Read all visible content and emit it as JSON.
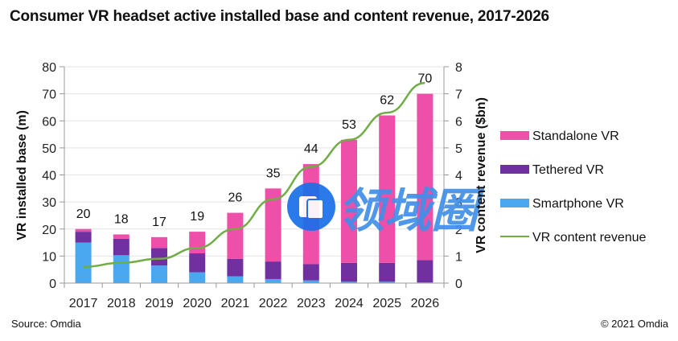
{
  "title": "Consumer VR headset active installed base and content revenue, 2017-2026",
  "footer": {
    "source": "Source: Omdia",
    "copyright": "© 2021 Omdia"
  },
  "watermark": {
    "text": "领域圈",
    "color": "#1a6fe8"
  },
  "chart_data": {
    "type": "bar",
    "stacked": true,
    "title": "Consumer VR headset active installed base and content revenue, 2017-2026",
    "categories": [
      "2017",
      "2018",
      "2019",
      "2020",
      "2021",
      "2022",
      "2023",
      "2024",
      "2025",
      "2026"
    ],
    "xlabel": "",
    "ylabel": "VR installed base (m)",
    "ylim": [
      0,
      80
    ],
    "yticks": [
      0,
      10,
      20,
      30,
      40,
      50,
      60,
      70,
      80
    ],
    "y2label": "VR content revenue ($bn)",
    "y2lim": [
      0,
      8
    ],
    "y2ticks": [
      0,
      1,
      2,
      3,
      4,
      5,
      6,
      7,
      8
    ],
    "grid": true,
    "legend_position": "right",
    "series": [
      {
        "name": "Smartphone VR",
        "type": "bar",
        "axis": "left",
        "color": "#4aa8f0",
        "values": [
          15,
          10.3,
          6.5,
          4,
          2.5,
          1.5,
          1,
          0.5,
          0.5,
          0.3
        ]
      },
      {
        "name": "Tethered VR",
        "type": "bar",
        "axis": "left",
        "color": "#7030a0",
        "values": [
          4,
          6.1,
          6.5,
          7,
          6.5,
          6.5,
          6,
          7,
          7,
          8.2
        ]
      },
      {
        "name": "Standalone VR",
        "type": "bar",
        "axis": "left",
        "color": "#ee4fa8",
        "values": [
          1,
          1.6,
          4,
          8,
          17,
          27,
          37,
          45.5,
          54.5,
          61.5
        ]
      },
      {
        "name": "VR content revenue",
        "type": "line",
        "axis": "right",
        "color": "#70ad47",
        "values": [
          0.6,
          0.75,
          0.9,
          1.3,
          2.0,
          3.1,
          4.3,
          5.3,
          6.3,
          7.4
        ]
      }
    ],
    "totals": [
      20,
      18,
      17,
      19,
      26,
      35,
      44,
      53,
      62,
      70
    ],
    "legend": [
      {
        "name": "Standalone VR",
        "color": "#ee4fa8",
        "kind": "bar"
      },
      {
        "name": "Tethered VR",
        "color": "#7030a0",
        "kind": "bar"
      },
      {
        "name": "Smartphone VR",
        "color": "#4aa8f0",
        "kind": "bar"
      },
      {
        "name": "VR content revenue",
        "color": "#70ad47",
        "kind": "line"
      }
    ]
  }
}
